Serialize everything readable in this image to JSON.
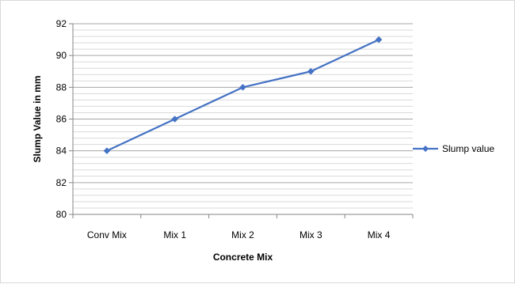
{
  "chart_data": {
    "type": "line",
    "title": "",
    "xlabel": "Concrete Mix",
    "ylabel": "Slump Value in mm",
    "categories": [
      "Conv Mix",
      "Mix 1",
      "Mix 2",
      "Mix 3",
      "Mix 4"
    ],
    "series": [
      {
        "name": "Slump value",
        "values": [
          84,
          86,
          88,
          89,
          91
        ],
        "color": "#4472C4",
        "marker": "diamond"
      }
    ],
    "ylim": [
      80,
      92
    ],
    "yticks": [
      80,
      82,
      84,
      86,
      88,
      90,
      92
    ],
    "grid": {
      "major": true,
      "minor": true
    },
    "legend_position": "right"
  }
}
